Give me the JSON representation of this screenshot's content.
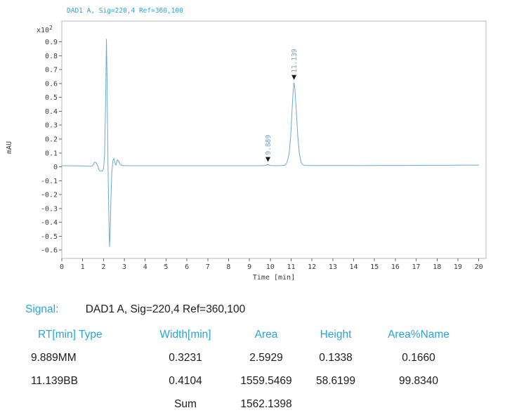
{
  "colors": {
    "accent": "#29a4dc",
    "curve": "#6aa9d2",
    "peak_label": "#6fa3c9",
    "marker": "#1a1a1a",
    "text": "#1c1c1c",
    "axis_text": "#3c3c3c",
    "plot_border": "#b9b9b9"
  },
  "chart_data": {
    "type": "line",
    "title": "DAD1 A, Sig=220,4 Ref=360,100",
    "xlabel": "Time [min]",
    "ylabel": "mAU",
    "y_multiplier_base": "x10",
    "y_multiplier_exp": "2",
    "xlim": [
      0,
      20.35
    ],
    "ylim": [
      -0.66,
      1.05
    ],
    "x_ticks": [
      "0",
      "1",
      "2",
      "3",
      "4",
      "5",
      "6",
      "7",
      "8",
      "9",
      "10",
      "11",
      "12",
      "13",
      "14",
      "15",
      "16",
      "17",
      "18",
      "19",
      "20"
    ],
    "y_ticks": [
      "0.9",
      "0.8",
      "0.7",
      "0.6",
      "0.5",
      "0.4",
      "0.3",
      "0.2",
      "0.1",
      "0",
      "-0.1",
      "-0.2",
      "-0.3",
      "-0.4",
      "-0.5",
      "-0.6"
    ],
    "grid": false,
    "legend": null,
    "trace": [
      [
        0,
        0.008
      ],
      [
        0.6,
        0.007
      ],
      [
        1.1,
        0.006
      ],
      [
        1.45,
        0.004
      ],
      [
        1.52,
        0.018
      ],
      [
        1.58,
        0.035
      ],
      [
        1.65,
        0.028
      ],
      [
        1.72,
        0.008
      ],
      [
        1.78,
        -0.02
      ],
      [
        1.86,
        -0.032
      ],
      [
        1.94,
        -0.03
      ],
      [
        2.0,
        -0.015
      ],
      [
        2.05,
        0.08
      ],
      [
        2.1,
        0.45
      ],
      [
        2.14,
        0.92
      ],
      [
        2.17,
        0.65
      ],
      [
        2.2,
        0.18
      ],
      [
        2.23,
        -0.12
      ],
      [
        2.26,
        -0.38
      ],
      [
        2.29,
        -0.575
      ],
      [
        2.32,
        -0.48
      ],
      [
        2.36,
        -0.22
      ],
      [
        2.4,
        -0.04
      ],
      [
        2.45,
        0.045
      ],
      [
        2.5,
        0.06
      ],
      [
        2.55,
        0.028
      ],
      [
        2.6,
        0.012
      ],
      [
        2.66,
        0.05
      ],
      [
        2.72,
        0.042
      ],
      [
        2.8,
        0.015
      ],
      [
        2.95,
        0.009
      ],
      [
        3.2,
        0.008
      ],
      [
        3.6,
        0.008
      ],
      [
        4,
        0.008
      ],
      [
        4.5,
        0.008
      ],
      [
        5,
        0.008
      ],
      [
        5.5,
        0.008
      ],
      [
        6,
        0.008
      ],
      [
        6.5,
        0.008
      ],
      [
        7,
        0.008
      ],
      [
        7.5,
        0.008
      ],
      [
        8,
        0.008
      ],
      [
        8.5,
        0.008
      ],
      [
        9,
        0.008
      ],
      [
        9.5,
        0.008
      ],
      [
        9.75,
        0.009
      ],
      [
        9.889,
        0.016
      ],
      [
        10.0,
        0.009
      ],
      [
        10.3,
        0.008
      ],
      [
        10.55,
        0.009
      ],
      [
        10.7,
        0.012
      ],
      [
        10.8,
        0.03
      ],
      [
        10.9,
        0.09
      ],
      [
        10.98,
        0.22
      ],
      [
        11.05,
        0.42
      ],
      [
        11.1,
        0.55
      ],
      [
        11.139,
        0.605
      ],
      [
        11.18,
        0.56
      ],
      [
        11.25,
        0.4
      ],
      [
        11.32,
        0.22
      ],
      [
        11.4,
        0.09
      ],
      [
        11.48,
        0.032
      ],
      [
        11.56,
        0.014
      ],
      [
        11.7,
        0.01
      ],
      [
        11.9,
        0.009
      ],
      [
        12.2,
        0.009
      ],
      [
        12.8,
        0.009
      ],
      [
        13.5,
        0.009
      ],
      [
        14.5,
        0.009
      ],
      [
        15.5,
        0.01
      ],
      [
        16.5,
        0.01
      ],
      [
        17.5,
        0.011
      ],
      [
        18.5,
        0.011
      ],
      [
        19.3,
        0.012
      ],
      [
        20,
        0.012
      ]
    ],
    "peaks": [
      {
        "rt": 9.889,
        "label": "9.889",
        "height_mAU": 0.1338,
        "marker_value": 0.035
      },
      {
        "rt": 11.139,
        "label": "11.139",
        "height_mAU": 58.6199,
        "marker_value": 0.626
      }
    ]
  },
  "signal": {
    "label": "Signal:",
    "value": "DAD1 A, Sig=220,4 Ref=360,100"
  },
  "table": {
    "headers": [
      "RT[min] Type",
      "Width[min]",
      "Area",
      "Height",
      "Area%Name"
    ],
    "rows": [
      [
        "9.889MM",
        "0.3231",
        "2.5929",
        "0.1338",
        "0.1660"
      ],
      [
        "11.139BB",
        "0.4104",
        "1559.5469",
        "58.6199",
        "99.8340"
      ]
    ],
    "sum_row": {
      "label": "Sum",
      "value": "1562.1398"
    }
  }
}
